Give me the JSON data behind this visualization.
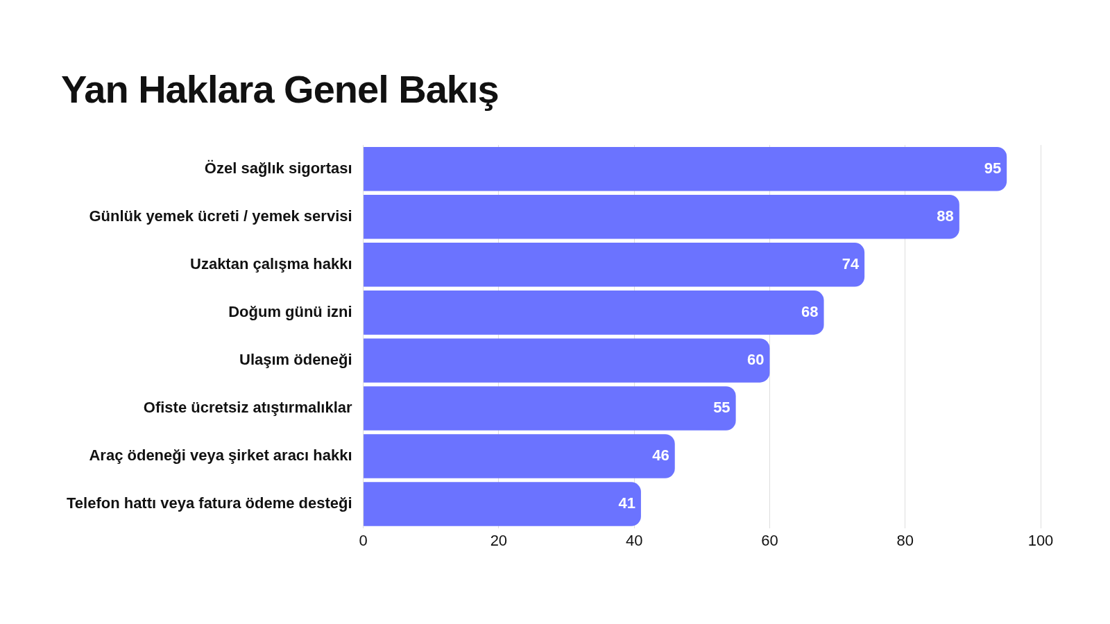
{
  "chart_data": {
    "type": "bar",
    "orientation": "horizontal",
    "title": "Yan Haklara Genel Bakış",
    "categories": [
      "Özel sağlık sigortası",
      "Günlük yemek ücreti / yemek servisi",
      "Uzaktan çalışma hakkı",
      "Doğum günü izni",
      "Ulaşım ödeneği",
      "Ofiste ücretsiz atıştırmalıklar",
      "Araç ödeneği veya şirket aracı hakkı",
      "Telefon hattı veya fatura ödeme desteği"
    ],
    "values": [
      95,
      88,
      74,
      68,
      60,
      55,
      46,
      41
    ],
    "color": "#6b73ff",
    "xlim": [
      0,
      100
    ],
    "xticks": [
      0,
      20,
      40,
      60,
      80,
      100
    ],
    "grid": "x",
    "data_labels": true,
    "legend": false
  }
}
